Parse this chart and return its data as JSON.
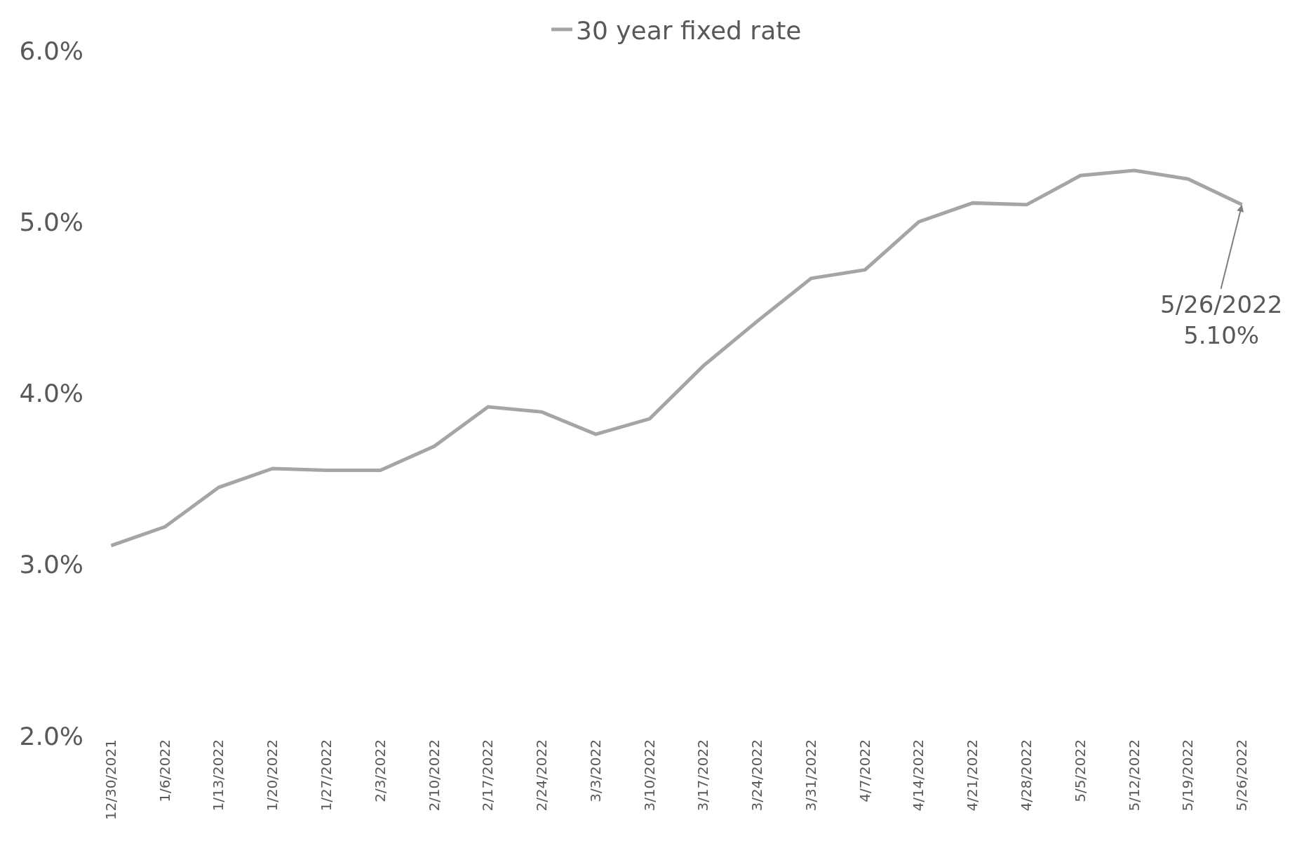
{
  "chart_data": {
    "type": "line",
    "categories": [
      "12/30/2021",
      "1/6/2022",
      "1/13/2022",
      "1/20/2022",
      "1/27/2022",
      "2/3/2022",
      "2/10/2022",
      "2/17/2022",
      "2/24/2022",
      "3/3/2022",
      "3/10/2022",
      "3/17/2022",
      "3/24/2022",
      "3/31/2022",
      "4/7/2022",
      "4/14/2022",
      "4/21/2022",
      "4/28/2022",
      "5/5/2022",
      "5/12/2022",
      "5/19/2022",
      "5/26/2022"
    ],
    "series": [
      {
        "name": "30 year fixed rate",
        "color": "#a5a5a5",
        "values": [
          3.11,
          3.22,
          3.45,
          3.56,
          3.55,
          3.55,
          3.69,
          3.92,
          3.89,
          3.76,
          3.85,
          4.16,
          4.42,
          4.67,
          4.72,
          5.0,
          5.11,
          5.1,
          5.27,
          5.3,
          5.25,
          5.1
        ]
      }
    ],
    "ylim": [
      2,
      6
    ],
    "yticks": [
      {
        "value": 2,
        "label": "2.0%"
      },
      {
        "value": 3,
        "label": "3.0%"
      },
      {
        "value": 4,
        "label": "4.0%"
      },
      {
        "value": 5,
        "label": "5.0%"
      },
      {
        "value": 6,
        "label": "6.0%"
      }
    ],
    "legend": "top",
    "marker": "none",
    "line_style": "solid",
    "annotations": [
      {
        "text": "5/26/2022\n5.10%",
        "x": "5/26/2022",
        "y": 5.1
      }
    ]
  }
}
